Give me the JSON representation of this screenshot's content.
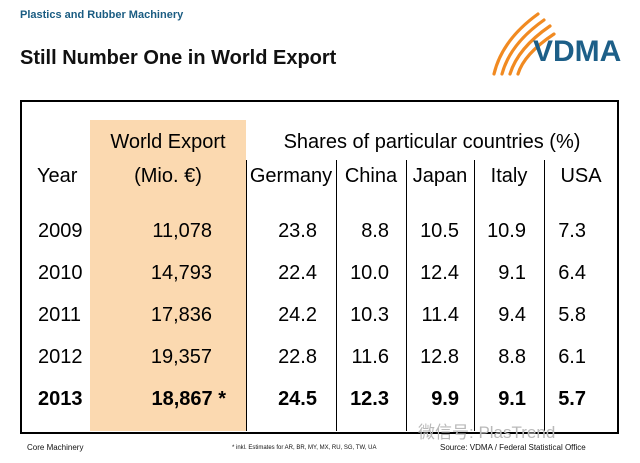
{
  "header": {
    "kicker": "Plastics and Rubber Machinery",
    "title": "Still Number One in World Export",
    "logo_text": "VDMA",
    "accent_orange": "#f18a21",
    "brand_blue": "#1d5f88"
  },
  "table": {
    "col_year": "Year",
    "col_export_line1": "World Export",
    "col_export_line2": "(Mio. €)",
    "col_shares": "Shares of particular countries (%)",
    "countries": [
      "Germany",
      "China",
      "Japan",
      "Italy",
      "USA"
    ],
    "rows": [
      {
        "year": "2009",
        "export": "11,078",
        "shares": [
          "23.8",
          "8.8",
          "10.5",
          "10.9",
          "7.3"
        ],
        "bold": false
      },
      {
        "year": "2010",
        "export": "14,793",
        "shares": [
          "22.4",
          "10.0",
          "12.4",
          "9.1",
          "6.4"
        ],
        "bold": false
      },
      {
        "year": "2011",
        "export": "17,836",
        "shares": [
          "24.2",
          "10.3",
          "11.4",
          "9.4",
          "5.8"
        ],
        "bold": false
      },
      {
        "year": "2012",
        "export": "19,357",
        "shares": [
          "22.8",
          "11.6",
          "12.8",
          "8.8",
          "6.1"
        ],
        "bold": false
      },
      {
        "year": "2013",
        "export": "18,867 *",
        "shares": [
          "24.5",
          "12.3",
          "9.9",
          "9.1",
          "5.7"
        ],
        "bold": true
      }
    ],
    "highlight_color": "#fbd9b0"
  },
  "footer": {
    "left": "Core Machinery",
    "note": "* inkl. Estimates for AR, BR, MY, MX, RU, SG, TW, UA",
    "source": "Source: VDMA / Federal Statistical Office"
  },
  "watermark": "微信号: PlasTrend"
}
